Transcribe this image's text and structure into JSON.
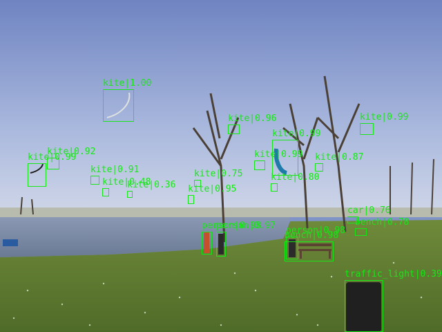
{
  "detections": [
    {
      "label": "kite|1.00"
    },
    {
      "label": "kite|0.99"
    },
    {
      "label": "kite|0.92"
    },
    {
      "label": "kite|0.91"
    },
    {
      "label": "kite|0.48"
    },
    {
      "label": "kite|0.36"
    },
    {
      "label": "kite|0.75"
    },
    {
      "label": "kite|0.95"
    },
    {
      "label": "kite|0.96"
    },
    {
      "label": "kite|0.99"
    },
    {
      "label": "kite|0.99"
    },
    {
      "label": "kite|0.87"
    },
    {
      "label": "kite|0.80"
    },
    {
      "label": "kite|0.99"
    },
    {
      "label": "person|0.98"
    },
    {
      "label": "person|0.97"
    },
    {
      "label": "person|0.98"
    },
    {
      "label": "bench|0.98"
    },
    {
      "label": "bench|0.78"
    },
    {
      "label": "car|0.76"
    },
    {
      "label": "traffic_light|0.39"
    }
  ]
}
